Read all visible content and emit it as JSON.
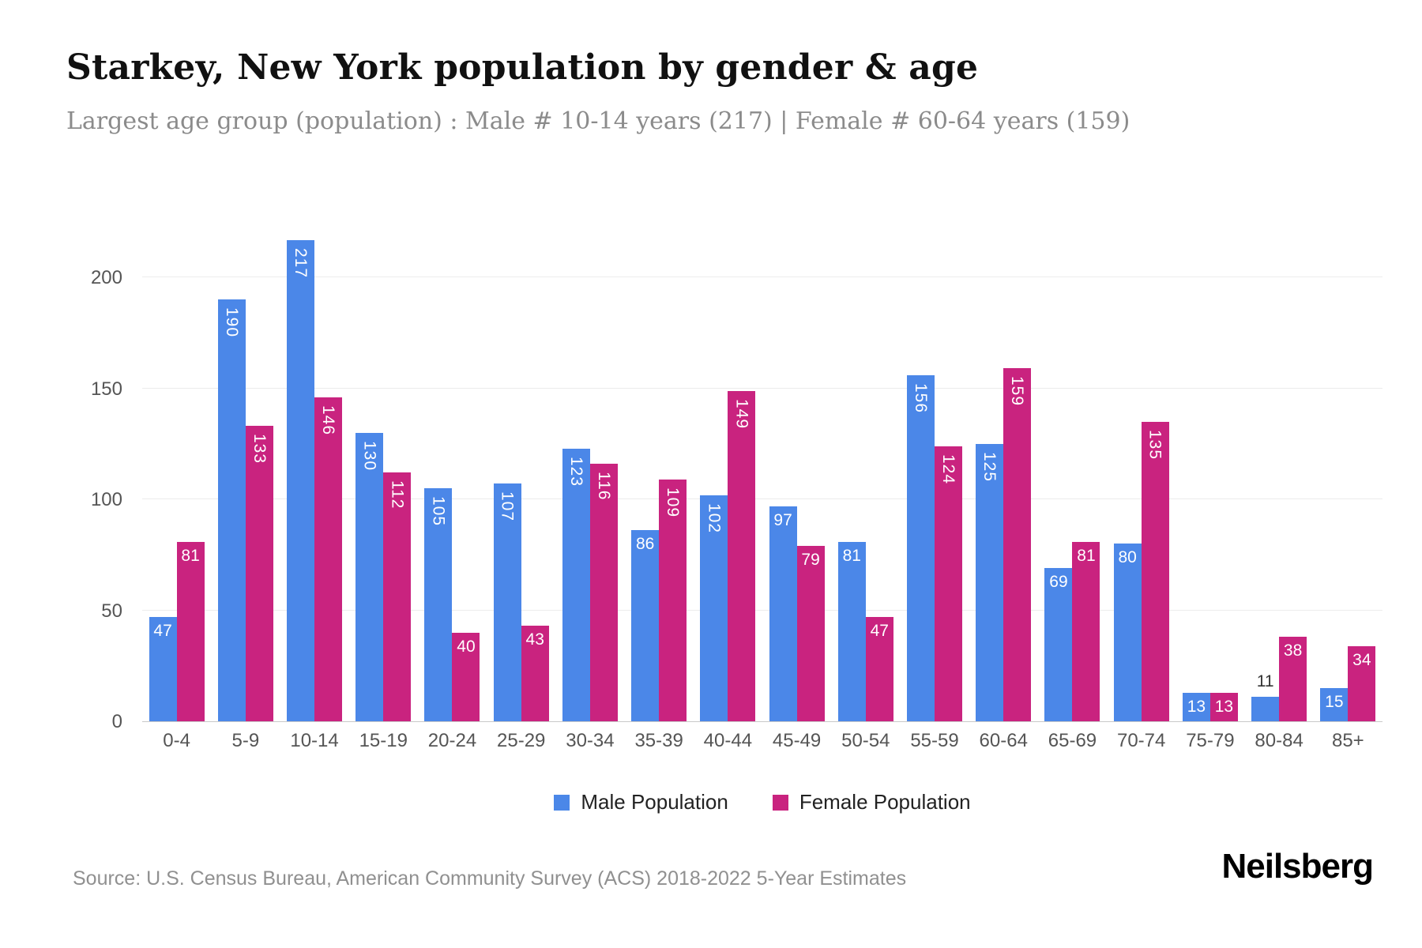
{
  "header": {
    "title": "Starkey, New York population by gender & age",
    "subtitle": "Largest age group (population) : Male # 10-14 years (217) | Female # 60-64 years (159)"
  },
  "chart_data": {
    "type": "bar",
    "title": "Starkey, New York population by gender & age",
    "categories": [
      "0-4",
      "5-9",
      "10-14",
      "15-19",
      "20-24",
      "25-29",
      "30-34",
      "35-39",
      "40-44",
      "45-49",
      "50-54",
      "55-59",
      "60-64",
      "65-69",
      "70-74",
      "75-79",
      "80-84",
      "85+"
    ],
    "series": [
      {
        "name": "Male Population",
        "color": "#4b87e8",
        "values": [
          47,
          190,
          217,
          130,
          105,
          107,
          123,
          86,
          102,
          97,
          81,
          156,
          125,
          69,
          80,
          13,
          11,
          15
        ]
      },
      {
        "name": "Female Population",
        "color": "#c9237f",
        "values": [
          81,
          133,
          146,
          112,
          40,
          43,
          116,
          109,
          149,
          79,
          47,
          124,
          159,
          81,
          135,
          13,
          38,
          34
        ]
      }
    ],
    "xlabel": "",
    "ylabel": "",
    "yticks": [
      0,
      50,
      100,
      150,
      200
    ],
    "ylim": [
      0,
      230
    ],
    "grid": true,
    "legend_position": "bottom"
  },
  "footer": {
    "source": "Source: U.S. Census Bureau, American Community Survey (ACS) 2018-2022 5-Year Estimates",
    "brand": "Neilsberg"
  }
}
